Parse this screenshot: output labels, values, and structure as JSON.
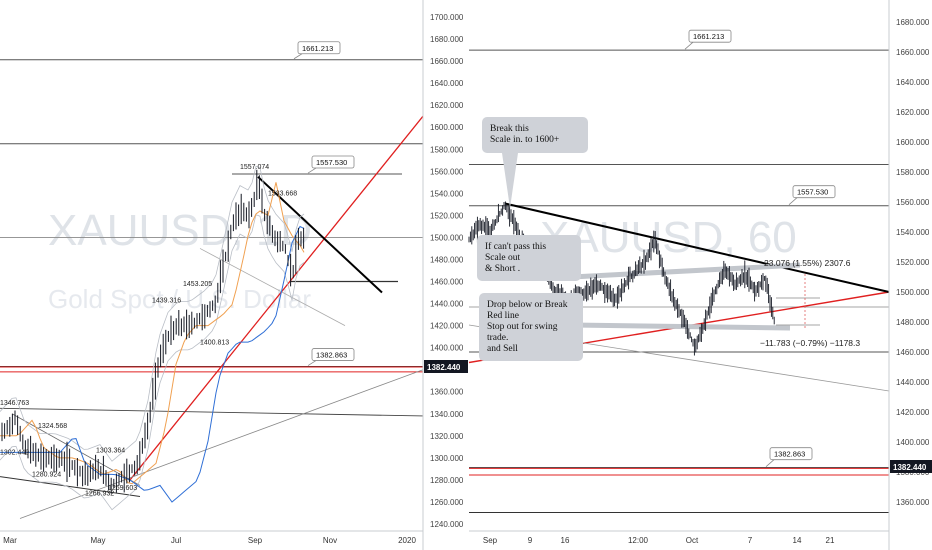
{
  "colors": {
    "background": "#ffffff",
    "candle": "#131722",
    "support_red": "#e02020",
    "resistance_black": "#000000",
    "ma_orange": "#f0a050",
    "ma_blue": "#2f6fd6",
    "bollinger": "#b9bec6",
    "callout_bg": "#cfd2d8",
    "price_badge_bg": "#131722"
  },
  "left_chart": {
    "watermark_symbol": "XAUUSD, 1D",
    "watermark_name": "Gold Spot / U.S. Dollar",
    "y_ticks": [
      "1700.000",
      "1680.000",
      "1660.000",
      "1640.000",
      "1620.000",
      "1600.000",
      "1580.000",
      "1560.000",
      "1540.000",
      "1520.000",
      "1500.000",
      "1480.000",
      "1460.000",
      "1440.000",
      "1420.000",
      "1400.000",
      "1380.000",
      "1360.000",
      "1340.000",
      "1320.000",
      "1300.000",
      "1280.000",
      "1260.000",
      "1240.000"
    ],
    "x_ticks": [
      "Mar",
      "May",
      "Jul",
      "Sep",
      "Nov",
      "2020"
    ],
    "level_labels": [
      "1661.213",
      "1557.530",
      "1382.863"
    ],
    "current_price": "1382.440",
    "candle_annotations": [
      "1557.074",
      "1533.668",
      "1453.205",
      "1439.316",
      "1400.813",
      "1346.763",
      "1324.568",
      "1303.364",
      "1302.449",
      "1280.924",
      "1269.603",
      "1266.932"
    ]
  },
  "right_chart": {
    "watermark_symbol": "XAUUSD, 60",
    "y_ticks": [
      "1680.000",
      "1660.000",
      "1640.000",
      "1620.000",
      "1600.000",
      "1580.000",
      "1560.000",
      "1540.000",
      "1520.000",
      "1500.000",
      "1480.000",
      "1460.000",
      "1440.000",
      "1420.000",
      "1400.000",
      "1380.000",
      "1360.000"
    ],
    "x_ticks": [
      "Sep",
      "9",
      "16",
      "12:00",
      "Oct",
      "7",
      "14",
      "21"
    ],
    "level_labels": [
      "1661.213",
      "1557.530",
      "1382.863"
    ],
    "current_price": "1382.440",
    "callouts": [
      {
        "line1": "Break this",
        "line2": "Scale in. to 1600+"
      },
      {
        "line1": "If can't pass this",
        "line2": "Scale out",
        "line3": "& Short ."
      },
      {
        "line1": "Drop below or Break",
        "line2": "Red line",
        "line3": "Stop out for swing",
        "line4": "trade.",
        "line5": "and Sell"
      }
    ],
    "measure_top": "23.076 (1.55%) 2307.6",
    "measure_bottom": "−11.783 (−0.79%) −1178.3"
  },
  "chart_data": [
    {
      "type": "line",
      "title": "",
      "timeframe": "1D",
      "x_range": [
        "Feb",
        "Jan 2020"
      ],
      "ylim": [
        1230,
        1710
      ],
      "grid": false,
      "horizontal_levels": [
        1661.213,
        1585,
        1557.53,
        1500,
        1460,
        1382.863,
        1382.44,
        1378
      ],
      "series": [
        {
          "x": [
            "Feb",
            "Mar",
            "Mar",
            "Apr",
            "Apr",
            "May",
            "May",
            "Jun",
            "Jun",
            "Jun",
            "Jul",
            "Jul",
            "Aug",
            "Aug",
            "Aug",
            "Sep",
            "Sep",
            "Sep",
            "Oct"
          ],
          "values": [
            1346,
            1325,
            1302,
            1300,
            1280,
            1285,
            1270,
            1300,
            1340,
            1400,
            1420,
            1440,
            1480,
            1520,
            1530,
            1557,
            1505,
            1480,
            1500
          ]
        }
      ],
      "annotations": [
        "1557.074",
        "1533.668",
        "1453.205",
        "1439.316",
        "1400.813",
        "1346.763",
        "1324.568",
        "1303.364",
        "1302.449",
        "1280.924",
        "1269.603",
        "1266.932"
      ]
    },
    {
      "type": "line",
      "title": "",
      "timeframe": "60",
      "x_range": [
        "Sep",
        "Oct 21"
      ],
      "ylim": [
        1340,
        1700
      ],
      "grid": false,
      "horizontal_levels": [
        1661.213,
        1585,
        1557.53,
        1490,
        1460,
        1382.863,
        1382.44,
        1378
      ],
      "series": [
        {
          "x": [
            "Sep",
            "Sep 3",
            "Sep 5",
            "Sep 9",
            "Sep 11",
            "Sep 16",
            "Sep 18",
            "Sep 24",
            "Sep 26",
            "Oct 1",
            "Oct 3",
            "Oct 7",
            "Oct 9",
            "Oct 11",
            "Oct 14"
          ],
          "values": [
            1530,
            1545,
            1557,
            1500,
            1490,
            1510,
            1500,
            1530,
            1490,
            1462,
            1500,
            1515,
            1505,
            1500,
            1478
          ]
        }
      ],
      "measurements": [
        "23.076 (1.55%) 2307.6",
        "−11.783 (−0.79%) −1178.3"
      ]
    }
  ]
}
